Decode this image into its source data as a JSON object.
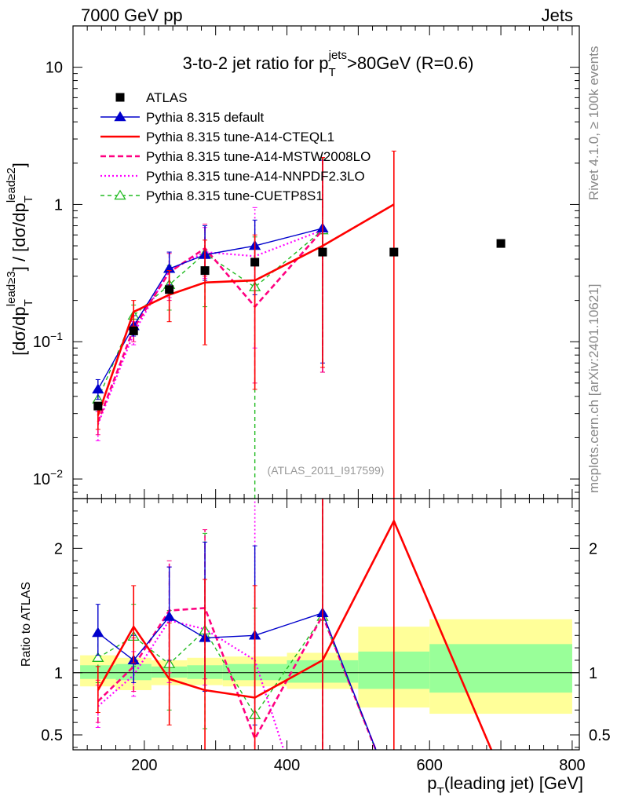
{
  "header": {
    "energy_label": "7000 GeV pp",
    "category_label": "Jets",
    "side_label_top": "Rivet 4.1.0, ≥ 100k events",
    "side_label_bottom": "mcplots.cern.ch [arXiv:2401.10621]",
    "watermark": "(ATLAS_2011_I917599)"
  },
  "chart_data": [
    {
      "type": "line",
      "panel": "main",
      "title": "3-to-2 jet ratio for p_T^jets >80GeV (R=0.6)",
      "title_parts": {
        "pre": "3-to-2 jet ratio for p",
        "sub": "T",
        "sup": "jets",
        "post": ">80GeV (R=0.6)"
      },
      "ylabel": "[dσ/dp_T^lead≥3] / [dσ/dp_T^lead≥2]",
      "ylabel_parts": {
        "a": "[dσ/dp",
        "sub": "T",
        "sup1": "lead≥3",
        "b": "] / [dσ/dp",
        "sup2": "lead≥2",
        "c": "]"
      },
      "yscale": "log",
      "ylim": [
        0.0072,
        20
      ],
      "xlim": [
        100,
        810
      ],
      "y_ticks": [
        {
          "value": 0.01,
          "base": "10",
          "exp": "−2"
        },
        {
          "value": 0.1,
          "base": "10",
          "exp": "−1"
        },
        {
          "value": 1,
          "base": "1",
          "exp": ""
        },
        {
          "value": 10,
          "base": "10",
          "exp": ""
        }
      ],
      "legend_position": "top-left",
      "series": [
        {
          "name": "ATLAS",
          "style": "data",
          "color": "#000000",
          "x": [
            135,
            185,
            235,
            285,
            355,
            450,
            550,
            700
          ],
          "y": [
            0.034,
            0.12,
            0.24,
            0.33,
            0.38,
            0.45,
            0.45,
            0.52
          ],
          "ylo": [
            0.034,
            0.12,
            0.24,
            0.33,
            0.38,
            0.45,
            0.45,
            0.52
          ],
          "yhi": [
            0.034,
            0.12,
            0.24,
            0.33,
            0.38,
            0.45,
            0.45,
            0.52
          ]
        },
        {
          "name": "Pythia 8.315 default",
          "style": "default",
          "color": "#0000cc",
          "x": [
            135,
            185,
            235,
            285,
            355,
            450
          ],
          "y": [
            0.045,
            0.13,
            0.34,
            0.43,
            0.5,
            0.67
          ],
          "ylo": [
            0.038,
            0.11,
            0.26,
            0.28,
            0.22,
            0.07
          ],
          "yhi": [
            0.053,
            0.155,
            0.45,
            0.7,
            0.77,
            2.1
          ]
        },
        {
          "name": "Pythia 8.315 tune-A14-CTEQL1",
          "style": "cteql1",
          "color": "#ff0000",
          "x": [
            135,
            185,
            235,
            285,
            355,
            450,
            550
          ],
          "y": [
            0.029,
            0.165,
            0.22,
            0.27,
            0.28,
            0.5,
            1.0
          ],
          "ylo": [
            0.023,
            0.13,
            0.14,
            0.095,
            0.045,
            0.065,
            0.002
          ],
          "yhi": [
            0.036,
            0.2,
            0.33,
            0.55,
            0.6,
            2.2,
            2.45
          ]
        },
        {
          "name": "Pythia 8.315 tune-A14-MSTW2008LO",
          "style": "mstw",
          "color": "#ff0080",
          "x": [
            135,
            185,
            235,
            285,
            355,
            450
          ],
          "y": [
            0.026,
            0.125,
            0.32,
            0.48,
            0.18,
            0.65
          ],
          "ylo": [
            0.021,
            0.1,
            0.2,
            0.3,
            0.05,
            0.06
          ],
          "yhi": [
            0.032,
            0.155,
            0.44,
            0.72,
            0.48,
            2.2
          ]
        },
        {
          "name": "Pythia 8.315 tune-A14-NNPDF2.3LO",
          "style": "nnpdf",
          "color": "#ff00ff",
          "x": [
            135,
            185,
            235,
            285,
            355,
            450
          ],
          "y": [
            0.025,
            0.115,
            0.33,
            0.45,
            0.42,
            0.65
          ],
          "ylo": [
            0.019,
            0.095,
            0.21,
            0.29,
            0.09,
            0.06
          ],
          "yhi": [
            0.031,
            0.14,
            0.45,
            0.68,
            0.95,
            2.2
          ]
        },
        {
          "name": "Pythia 8.315 tune-CUETP8S1",
          "style": "cuetp",
          "color": "#22bb22",
          "x": [
            135,
            185,
            235,
            285,
            355,
            450
          ],
          "y": [
            0.038,
            0.155,
            0.26,
            0.44,
            0.25,
            0.65
          ],
          "ylo": [
            0.031,
            0.125,
            0.17,
            0.18,
            0.0072,
            0.06
          ],
          "yhi": [
            0.046,
            0.185,
            0.36,
            0.7,
            0.58,
            2.15
          ]
        }
      ]
    },
    {
      "type": "line",
      "panel": "ratio",
      "xlabel": "p_T(leading jet) [GeV]",
      "xlabel_parts": {
        "pre": "p",
        "sub": "T",
        "post": "(leading jet) [GeV]"
      },
      "ylabel": "Ratio to ATLAS",
      "ylim": [
        0.38,
        2.4
      ],
      "xlim": [
        100,
        810
      ],
      "x_ticks": [
        200,
        400,
        600,
        800
      ],
      "y_ticks": [
        0.5,
        1,
        2
      ],
      "bands": [
        {
          "xlo": 110,
          "xhi": 160,
          "stat_lo": 0.95,
          "stat_hi": 1.06,
          "tot_lo": 0.89,
          "tot_hi": 1.14
        },
        {
          "xlo": 160,
          "xhi": 210,
          "stat_lo": 0.94,
          "stat_hi": 1.07,
          "tot_lo": 0.86,
          "tot_hi": 1.12
        },
        {
          "xlo": 210,
          "xhi": 260,
          "stat_lo": 0.96,
          "stat_hi": 1.05,
          "tot_lo": 0.9,
          "tot_hi": 1.1
        },
        {
          "xlo": 260,
          "xhi": 310,
          "stat_lo": 0.95,
          "stat_hi": 1.06,
          "tot_lo": 0.9,
          "tot_hi": 1.12
        },
        {
          "xlo": 310,
          "xhi": 400,
          "stat_lo": 0.94,
          "stat_hi": 1.07,
          "tot_lo": 0.89,
          "tot_hi": 1.13
        },
        {
          "xlo": 400,
          "xhi": 500,
          "stat_lo": 0.92,
          "stat_hi": 1.1,
          "tot_lo": 0.87,
          "tot_hi": 1.16
        },
        {
          "xlo": 500,
          "xhi": 600,
          "stat_lo": 0.87,
          "stat_hi": 1.17,
          "tot_lo": 0.72,
          "tot_hi": 1.37
        },
        {
          "xlo": 600,
          "xhi": 800,
          "stat_lo": 0.84,
          "stat_hi": 1.23,
          "tot_lo": 0.67,
          "tot_hi": 1.43
        }
      ],
      "series": [
        {
          "name": "Pythia 8.315 default",
          "style": "default",
          "color": "#0000cc",
          "x": [
            135,
            185,
            235,
            285,
            355,
            450,
            550
          ],
          "y": [
            1.32,
            1.1,
            1.45,
            1.28,
            1.3,
            1.48,
            0.01
          ],
          "ylo": [
            1.14,
            0.92,
            1.1,
            0.85,
            0.58,
            0.15,
            0.01
          ],
          "yhi": [
            1.55,
            1.3,
            1.85,
            2.05,
            2.02,
            2.45,
            0.01
          ]
        },
        {
          "name": "Pythia 8.315 tune-A14-CTEQL1",
          "style": "cteql1",
          "color": "#ff0000",
          "x": [
            135,
            185,
            235,
            285,
            355,
            450,
            550,
            700
          ],
          "y": [
            0.86,
            1.37,
            0.95,
            0.86,
            0.8,
            1.1,
            2.22,
            0.2
          ],
          "ylo": [
            0.68,
            1.08,
            0.58,
            0.2,
            0.1,
            0.1,
            0.01,
            0.2
          ],
          "yhi": [
            1.05,
            1.7,
            1.4,
            1.75,
            1.7,
            2.45,
            2.45,
            0.2
          ]
        },
        {
          "name": "Pythia 8.315 tune-A14-MSTW2008LO",
          "style": "mstw",
          "color": "#ff0080",
          "x": [
            135,
            185,
            235,
            285,
            355,
            450,
            550
          ],
          "y": [
            0.77,
            1.05,
            1.5,
            1.52,
            0.47,
            1.46,
            0.01
          ],
          "ylo": [
            0.6,
            0.85,
            1.0,
            0.95,
            0.12,
            0.12,
            0.01
          ],
          "yhi": [
            0.94,
            1.28,
            1.9,
            2.15,
            1.3,
            2.45,
            0.01
          ]
        },
        {
          "name": "Pythia 8.315 tune-A14-NNPDF2.3LO",
          "style": "nnpdf",
          "color": "#ff00ff",
          "x": [
            135,
            185,
            235,
            285,
            355,
            400
          ],
          "y": [
            0.73,
            0.98,
            1.42,
            1.35,
            1.1,
            0.3
          ],
          "ylo": [
            0.56,
            0.81,
            0.92,
            0.9,
            0.25,
            0.3
          ],
          "yhi": [
            0.9,
            1.17,
            1.85,
            2.05,
            2.45,
            0.3
          ]
        },
        {
          "name": "Pythia 8.315 tune-CUETP8S1",
          "style": "cuetp",
          "color": "#22bb22",
          "x": [
            135,
            185,
            235,
            285,
            355,
            450,
            550
          ],
          "y": [
            1.12,
            1.29,
            1.07,
            1.34,
            0.66,
            1.45,
            0.01
          ],
          "ylo": [
            0.92,
            1.05,
            0.7,
            0.55,
            0.01,
            0.13,
            0.01
          ],
          "yhi": [
            1.34,
            1.55,
            1.5,
            2.12,
            1.52,
            2.45,
            0.01
          ]
        }
      ]
    }
  ]
}
